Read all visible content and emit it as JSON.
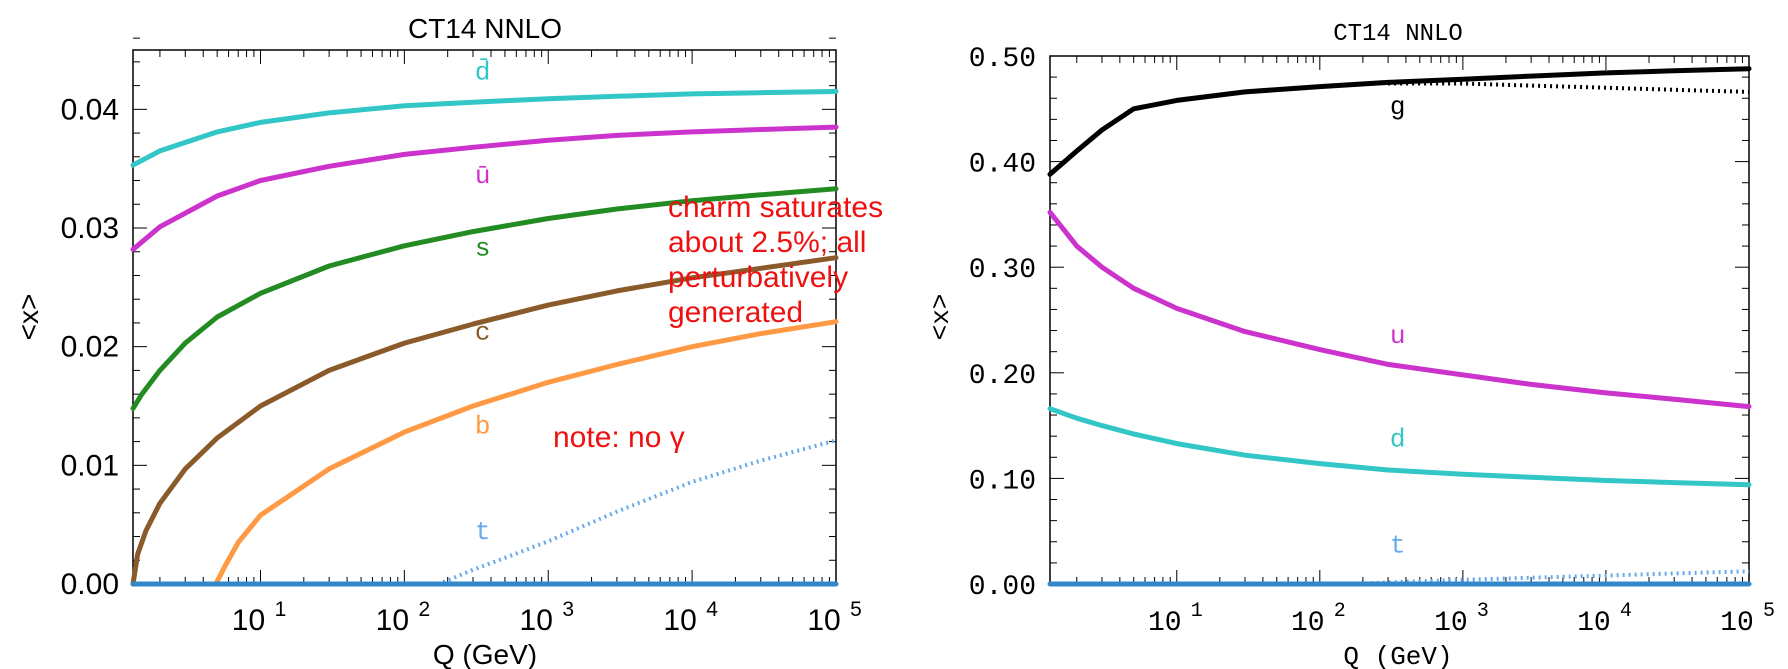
{
  "chart_data": [
    {
      "type": "line",
      "title": "CT14 NNLO",
      "xlabel": "Q (GeV)",
      "ylabel": "<x>",
      "xscale": "log",
      "xlim": [
        1.3,
        100000
      ],
      "ylim": [
        0,
        0.045
      ],
      "xticks": [
        10,
        100,
        1000,
        10000,
        100000
      ],
      "xtick_labels": [
        {
          "base": "10",
          "exp": "1"
        },
        {
          "base": "10",
          "exp": "2"
        },
        {
          "base": "10",
          "exp": "3"
        },
        {
          "base": "10",
          "exp": "4"
        },
        {
          "base": "10",
          "exp": "5"
        }
      ],
      "yticks": [
        0,
        0.01,
        0.02,
        0.03,
        0.04
      ],
      "ytick_labels": [
        "0.00",
        "0.01",
        "0.02",
        "0.03",
        "0.04"
      ],
      "grid": false,
      "series": [
        {
          "name": "d̄",
          "color": "#33c6c6",
          "style": "solid",
          "label_at": [
            350,
            0.0425
          ],
          "x": [
            1.3,
            2,
            5,
            10,
            30,
            100,
            300,
            1000,
            3000,
            10000,
            30000,
            100000
          ],
          "y": [
            0.0353,
            0.0365,
            0.0381,
            0.0389,
            0.0397,
            0.0403,
            0.0406,
            0.0409,
            0.0411,
            0.0413,
            0.0414,
            0.0415
          ]
        },
        {
          "name": "ū",
          "color": "#cc33cc",
          "style": "solid",
          "label_at": [
            350,
            0.0338
          ],
          "x": [
            1.3,
            2,
            5,
            10,
            30,
            100,
            300,
            1000,
            3000,
            10000,
            30000,
            100000
          ],
          "y": [
            0.0282,
            0.0301,
            0.0327,
            0.034,
            0.0352,
            0.0362,
            0.0368,
            0.0374,
            0.0378,
            0.0381,
            0.0383,
            0.0385
          ]
        },
        {
          "name": "s",
          "color": "#228b22",
          "style": "solid",
          "label_at": [
            350,
            0.0277
          ],
          "x": [
            1.3,
            1.5,
            2,
            3,
            5,
            10,
            30,
            100,
            300,
            1000,
            3000,
            10000,
            30000,
            100000
          ],
          "y": [
            0.0148,
            0.016,
            0.018,
            0.0203,
            0.0225,
            0.0245,
            0.0268,
            0.0285,
            0.0297,
            0.0308,
            0.0316,
            0.0323,
            0.0328,
            0.0333
          ]
        },
        {
          "name": "c",
          "color": "#8b5a2b",
          "style": "solid",
          "label_at": [
            350,
            0.0206
          ],
          "x": [
            1.3,
            1.4,
            1.6,
            2,
            3,
            5,
            10,
            30,
            100,
            300,
            1000,
            3000,
            10000,
            30000,
            100000
          ],
          "y": [
            0.0,
            0.0025,
            0.0045,
            0.0068,
            0.0097,
            0.0123,
            0.015,
            0.018,
            0.0203,
            0.0219,
            0.0235,
            0.0247,
            0.0258,
            0.0266,
            0.0275
          ]
        },
        {
          "name": "b",
          "color": "#ff9944",
          "style": "solid",
          "label_at": [
            350,
            0.0127
          ],
          "x": [
            4.9,
            5.6,
            7,
            10,
            30,
            100,
            300,
            1000,
            3000,
            10000,
            30000,
            100000
          ],
          "y": [
            0.0,
            0.0014,
            0.0035,
            0.0058,
            0.0097,
            0.0128,
            0.015,
            0.017,
            0.0185,
            0.02,
            0.0211,
            0.0221
          ]
        },
        {
          "name": "t",
          "color": "#66aaee",
          "style": "dotted",
          "label_at": [
            350,
            0.0038
          ],
          "x": [
            170,
            200,
            300,
            500,
            1000,
            3000,
            10000,
            30000,
            100000
          ],
          "y": [
            0.0,
            0.0003,
            0.0012,
            0.0022,
            0.0036,
            0.0061,
            0.0086,
            0.0104,
            0.0121
          ]
        },
        {
          "name": "",
          "color": "#3388cc",
          "style": "solid",
          "label_at": null,
          "x": [
            1.3,
            100000
          ],
          "y": [
            0.0,
            0.0
          ]
        }
      ]
    },
    {
      "type": "line",
      "title": "CT14 NNLO",
      "xlabel": "Q (GeV)",
      "ylabel": "<x>",
      "xscale": "log",
      "xlim": [
        1.3,
        100000
      ],
      "ylim": [
        0,
        0.5
      ],
      "xticks": [
        10,
        100,
        1000,
        10000,
        100000
      ],
      "xtick_labels": [
        {
          "base": "10",
          "exp": "1"
        },
        {
          "base": "10",
          "exp": "2"
        },
        {
          "base": "10",
          "exp": "3"
        },
        {
          "base": "10",
          "exp": "4"
        },
        {
          "base": "10",
          "exp": "5"
        }
      ],
      "yticks": [
        0,
        0.1,
        0.2,
        0.3,
        0.4,
        0.5
      ],
      "ytick_labels": [
        "0.00",
        "0.10",
        "0.20",
        "0.30",
        "0.40",
        "0.50"
      ],
      "grid": false,
      "series": [
        {
          "name": "g",
          "color": "#000000",
          "style": "solid",
          "label_at": [
            350,
            0.445
          ],
          "x": [
            1.3,
            2,
            3,
            5,
            10,
            30,
            100,
            300,
            1000,
            3000,
            10000,
            30000,
            100000
          ],
          "y": [
            0.388,
            0.41,
            0.43,
            0.45,
            0.458,
            0.466,
            0.471,
            0.475,
            0.478,
            0.481,
            0.484,
            0.486,
            0.488
          ]
        },
        {
          "name": "",
          "color": "#000000",
          "style": "dotted",
          "label_at": null,
          "x": [
            300,
            1000,
            3000,
            10000,
            30000,
            100000
          ],
          "y": [
            0.474,
            0.474,
            0.472,
            0.47,
            0.468,
            0.466
          ]
        },
        {
          "name": "u",
          "color": "#cc33cc",
          "style": "solid",
          "label_at": [
            350,
            0.228
          ],
          "x": [
            1.3,
            2,
            3,
            5,
            10,
            30,
            100,
            300,
            1000,
            3000,
            10000,
            30000,
            100000
          ],
          "y": [
            0.352,
            0.32,
            0.3,
            0.28,
            0.261,
            0.239,
            0.222,
            0.208,
            0.198,
            0.189,
            0.181,
            0.175,
            0.168
          ]
        },
        {
          "name": "d",
          "color": "#33c6c6",
          "style": "solid",
          "label_at": [
            350,
            0.13
          ],
          "x": [
            1.3,
            2,
            3,
            5,
            10,
            30,
            100,
            300,
            1000,
            3000,
            10000,
            30000,
            100000
          ],
          "y": [
            0.166,
            0.157,
            0.15,
            0.142,
            0.133,
            0.122,
            0.114,
            0.108,
            0.104,
            0.101,
            0.098,
            0.096,
            0.094
          ]
        },
        {
          "name": "t",
          "color": "#66aaee",
          "style": "dotted",
          "label_at": [
            350,
            0.03
          ],
          "x": [
            170,
            300,
            1000,
            3000,
            10000,
            30000,
            100000
          ],
          "y": [
            0.0,
            0.0015,
            0.004,
            0.006,
            0.008,
            0.01,
            0.012
          ]
        },
        {
          "name": "",
          "color": "#3388cc",
          "style": "solid",
          "label_at": null,
          "x": [
            1.3,
            100000
          ],
          "y": [
            0.0,
            0.0
          ]
        }
      ]
    }
  ],
  "annotations": {
    "note1": "charm saturates\nabout 2.5%; all\nperturbatively\ngenerated",
    "note2": "note: no γ"
  }
}
